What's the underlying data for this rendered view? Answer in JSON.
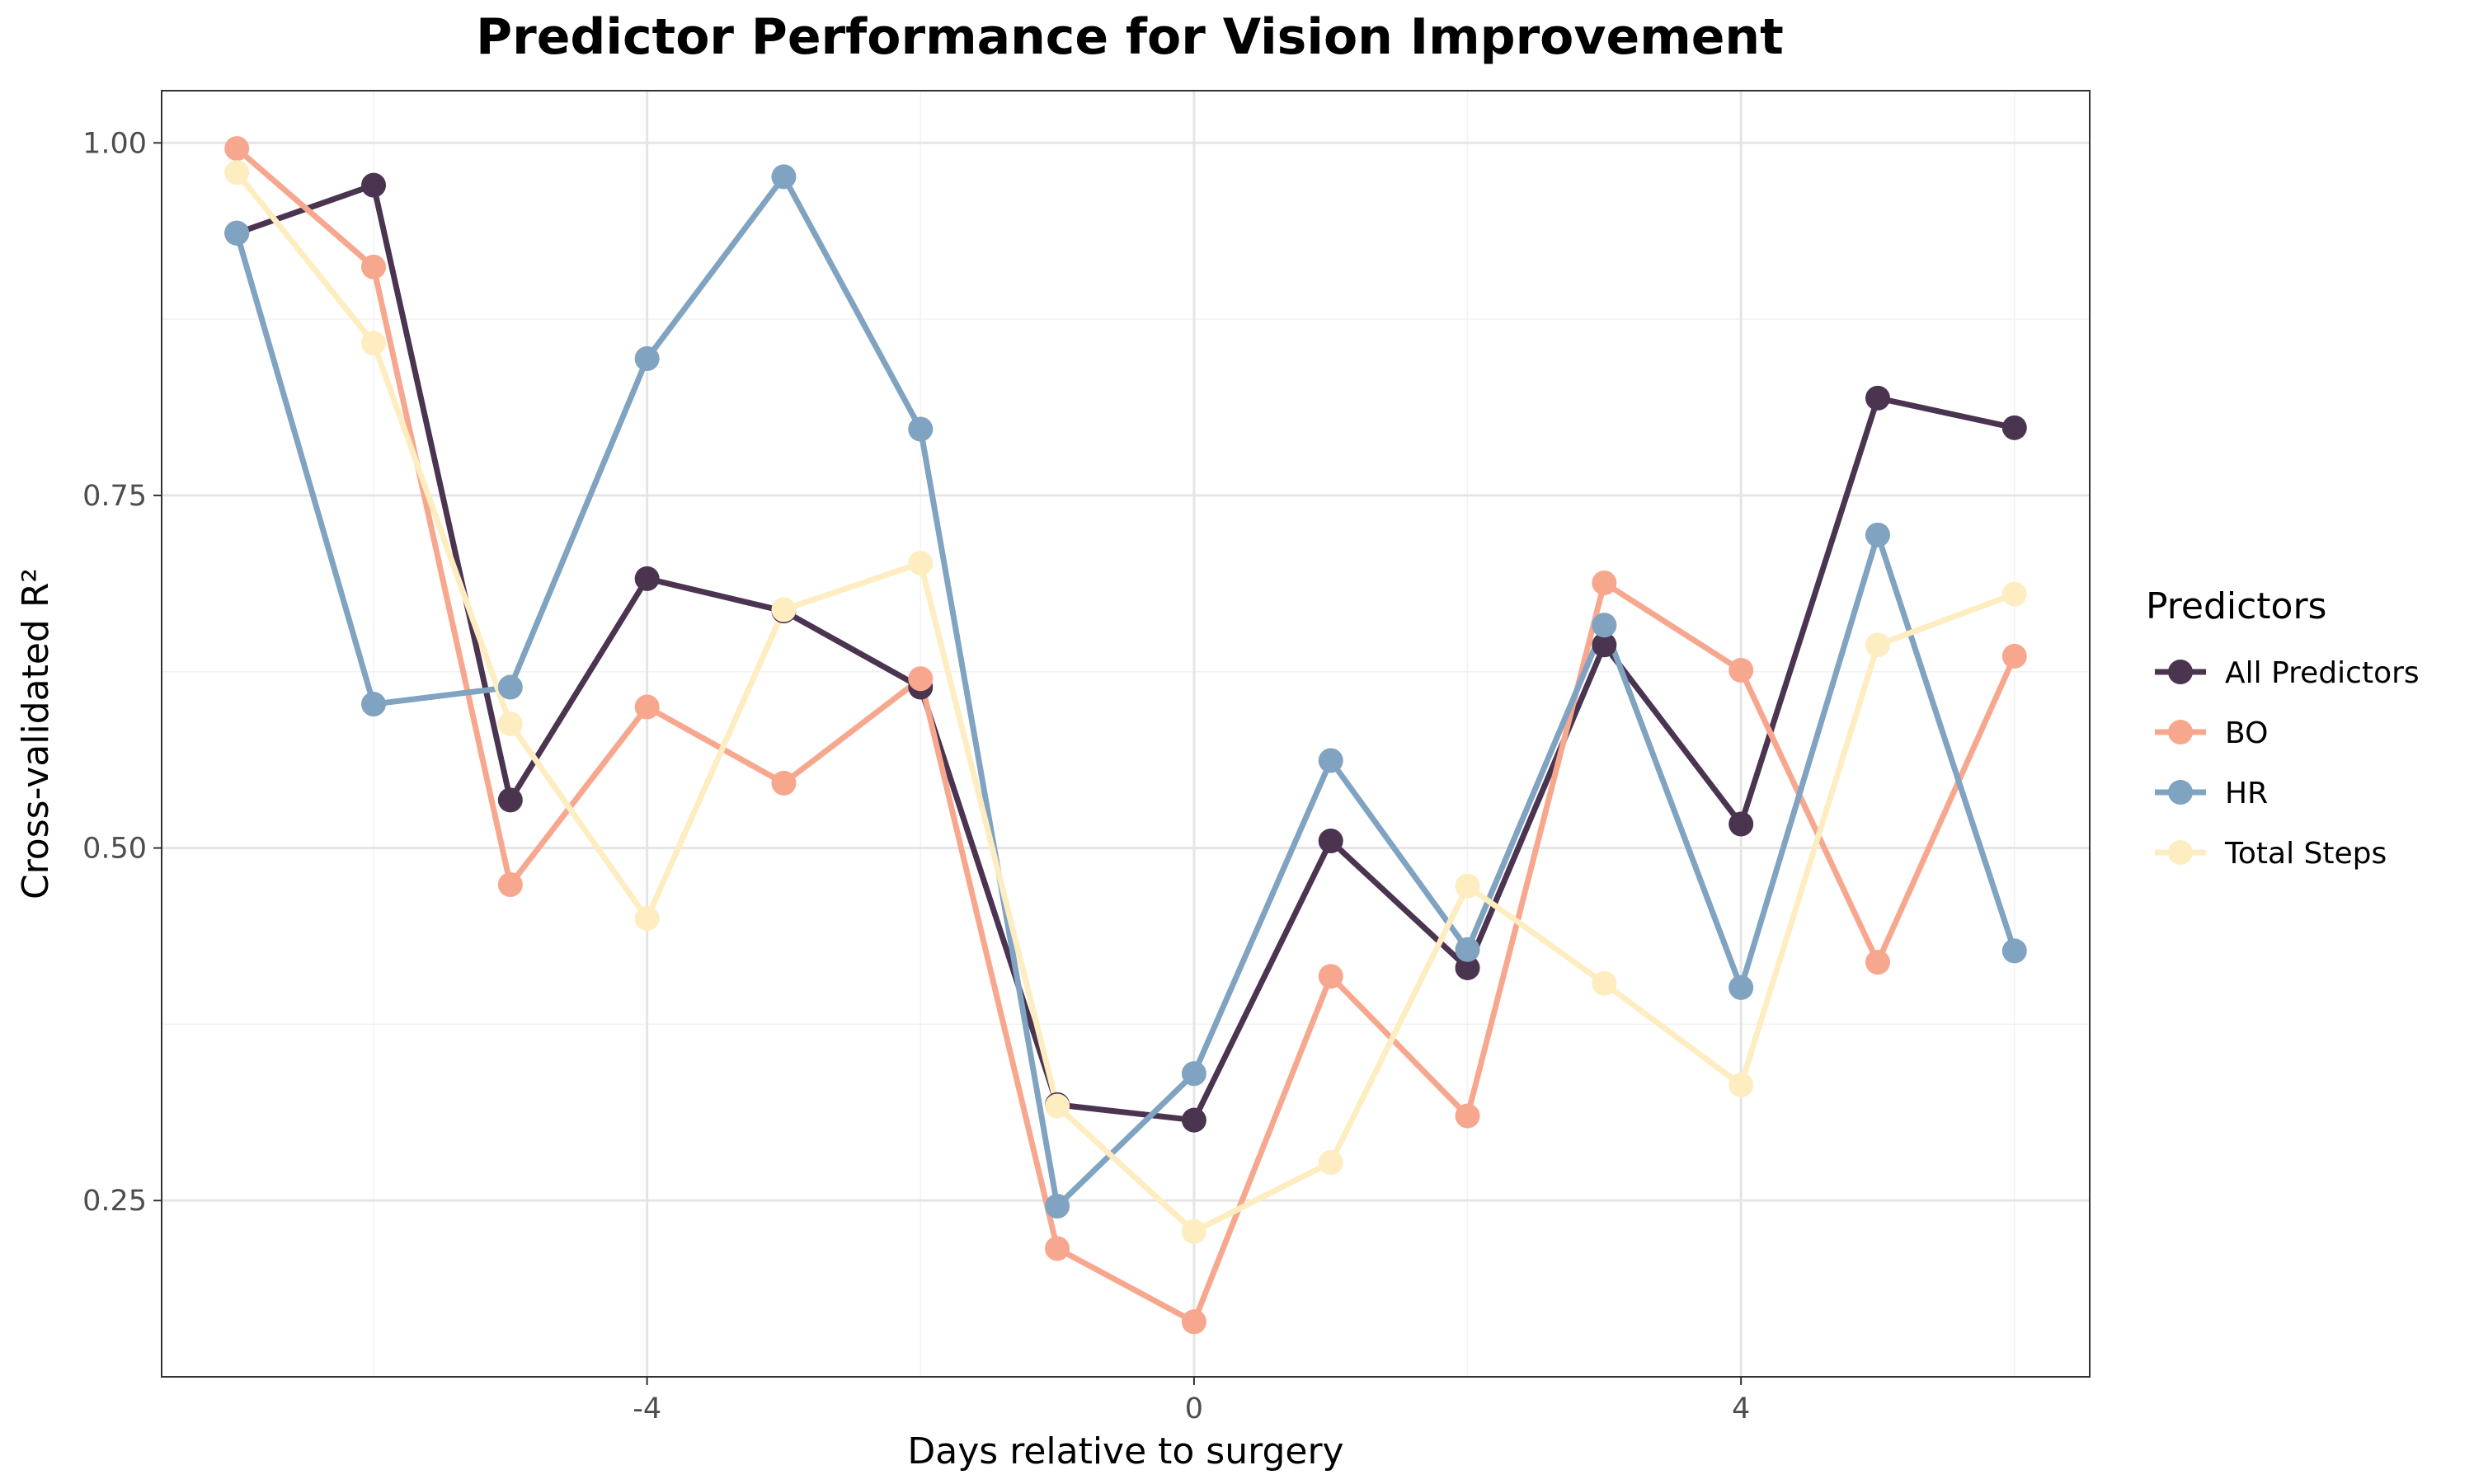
{
  "chart_data": {
    "type": "line",
    "title": "Predictor Performance for Vision Improvement",
    "xlabel": "Days relative to surgery",
    "ylabel": "Cross-validated R²",
    "x": [
      -7,
      -6,
      -5,
      -4,
      -3,
      -2,
      -1,
      0,
      1,
      2,
      3,
      4,
      5,
      6
    ],
    "x_ticks": [
      -4,
      0,
      4
    ],
    "y_ticks": [
      0.25,
      0.5,
      0.75,
      1.0
    ],
    "y_tick_labels": [
      "0.25",
      "0.50",
      "0.75",
      "1.00"
    ],
    "xlim": [
      -7.55,
      6.55
    ],
    "ylim": [
      0.125,
      1.037
    ],
    "grid": true,
    "legend_title": "Predictors",
    "legend_position": "right",
    "series": [
      {
        "name": "All Predictors",
        "color": "#4a3450",
        "values": [
          0.936,
          0.97,
          0.534,
          0.691,
          0.668,
          0.614,
          0.318,
          0.307,
          0.505,
          0.415,
          0.644,
          0.517,
          0.819,
          0.798
        ]
      },
      {
        "name": "BO",
        "color": "#f7a78e",
        "values": [
          0.996,
          0.912,
          0.474,
          0.6,
          0.546,
          0.62,
          0.216,
          0.164,
          0.409,
          0.31,
          0.688,
          0.626,
          0.419,
          0.636
        ]
      },
      {
        "name": "HR",
        "color": "#7fa3c0",
        "values": [
          0.936,
          0.602,
          0.614,
          0.847,
          0.976,
          0.797,
          0.246,
          0.34,
          0.562,
          0.428,
          0.658,
          0.401,
          0.722,
          0.427
        ]
      },
      {
        "name": "Total Steps",
        "color": "#fdedc0",
        "values": [
          0.979,
          0.858,
          0.588,
          0.45,
          0.669,
          0.702,
          0.317,
          0.228,
          0.277,
          0.473,
          0.404,
          0.332,
          0.644,
          0.68
        ]
      }
    ]
  }
}
